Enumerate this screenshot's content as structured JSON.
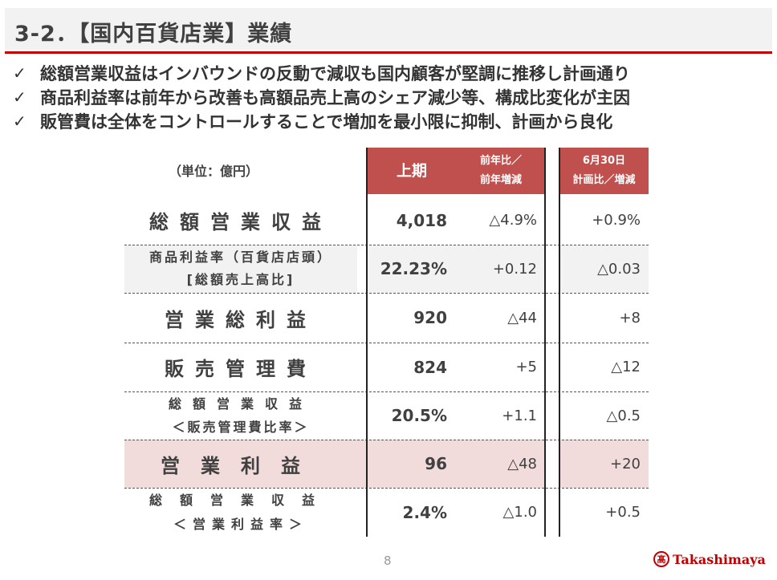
{
  "header": {
    "title": "3-2．【国内百貨店業】業績"
  },
  "bullets": [
    {
      "mark": "✓",
      "text": "総額営業収益はインバウンドの反動で減収も国内顧客が堅調に推移し計画通り"
    },
    {
      "mark": "✓",
      "text": "商品利益率は前年から改善も高額品売上高のシェア減少等、構成比変化が主因"
    },
    {
      "mark": "✓",
      "text": "販管費は全体をコントロールすることで増加を最小限に抑制、計画から良化"
    }
  ],
  "table": {
    "unit": "（単位：億円）",
    "headers": {
      "h1": "上期",
      "h2_line1": "前年比／",
      "h2_line2": "前年増減",
      "h3_line1": "6月30日",
      "h3_line2": "計画比／増減"
    },
    "rows": [
      {
        "label1": "総額営業収益",
        "label2": "",
        "value": "4,018",
        "yoy": "△4.9%",
        "plan": "+0.9%"
      },
      {
        "label1": "商品利益率（百貨店店頭）",
        "label2": "[総額売上高比]",
        "value": "22.23%",
        "yoy": "+0.12",
        "plan": "△0.03"
      },
      {
        "label1": "営業総利益",
        "label2": "",
        "value": "920",
        "yoy": "△44",
        "plan": "+8"
      },
      {
        "label1": "販売管理費",
        "label2": "",
        "value": "824",
        "yoy": "+5",
        "plan": "△12"
      },
      {
        "label1": "総額営業収益",
        "label2": "＜販売管理費比率＞",
        "value": "20.5%",
        "yoy": "+1.1",
        "plan": "△0.5"
      },
      {
        "label1": "営業利益",
        "label2": "",
        "value": "96",
        "yoy": "△48",
        "plan": "+20"
      },
      {
        "label1": "総額営業収益",
        "label2": "＜営業利益率＞",
        "value": "2.4%",
        "yoy": "△1.0",
        "plan": "+0.5"
      }
    ]
  },
  "footer": {
    "page": "8",
    "logo_mark": "髙",
    "logo_text": "Takashimaya"
  },
  "colors": {
    "accent": "#c00000",
    "header_fill": "#c0504d",
    "highlight": "#f2dcdb",
    "grey_fill": "#f2f2f2"
  }
}
